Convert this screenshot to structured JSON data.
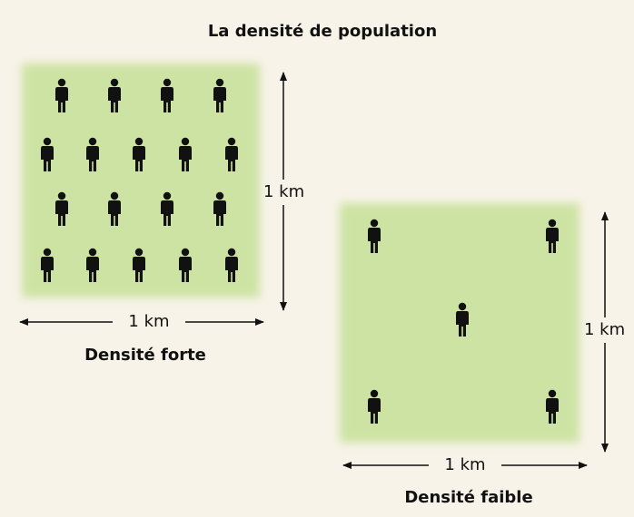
{
  "title": "La densité de population",
  "panels": [
    {
      "label": "Densité forte",
      "width_label": "1 km",
      "height_label": "1 km"
    },
    {
      "label": "Densité faible",
      "width_label": "1 km",
      "height_label": "1 km"
    }
  ]
}
